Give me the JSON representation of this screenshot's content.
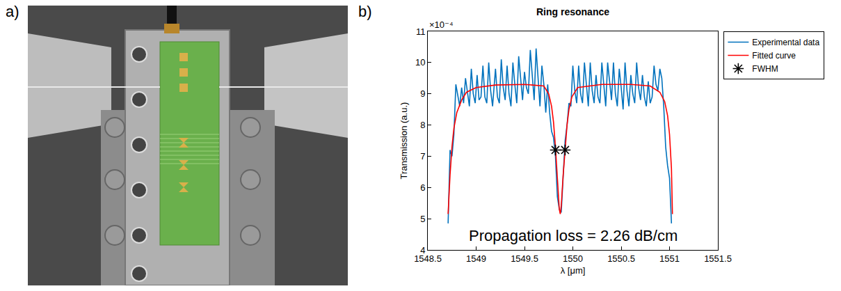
{
  "panel_labels": [
    "a)",
    "b)"
  ],
  "chart_data": {
    "type": "line",
    "title": "Ring resonance",
    "x_label": "λ [μm]",
    "y_label": "Transmission (a.u.)",
    "y_multiplier_label": "×10⁻⁴",
    "annotations": [
      "Propagation loss = 2.26 dB/cm"
    ],
    "xlim": [
      1548.5,
      1551.5
    ],
    "xticks": [
      1548.5,
      1549,
      1549.5,
      1550,
      1550.5,
      1551,
      1551.5
    ],
    "ylim": [
      4,
      11
    ],
    "yticks": [
      4,
      5,
      6,
      7,
      8,
      9,
      10,
      11
    ],
    "grid": false,
    "legend": "right",
    "series": [
      {
        "name": "Experimental data",
        "color": "#0072BD",
        "type": "line",
        "line_style": "solid",
        "x": [
          1548.71,
          1548.73,
          1548.75,
          1548.77,
          1548.79,
          1548.81,
          1548.83,
          1548.85,
          1548.87,
          1548.89,
          1548.91,
          1548.93,
          1548.95,
          1548.97,
          1548.99,
          1549.01,
          1549.03,
          1549.05,
          1549.07,
          1549.09,
          1549.11,
          1549.13,
          1549.15,
          1549.17,
          1549.2,
          1549.22,
          1549.24,
          1549.26,
          1549.28,
          1549.3,
          1549.32,
          1549.34,
          1549.36,
          1549.38,
          1549.4,
          1549.42,
          1549.44,
          1549.46,
          1549.48,
          1549.5,
          1549.52,
          1549.54,
          1549.56,
          1549.58,
          1549.6,
          1549.62,
          1549.64,
          1549.66,
          1549.68,
          1549.7,
          1549.72,
          1549.74,
          1549.76,
          1549.78,
          1549.8,
          1549.82,
          1549.84,
          1549.86,
          1549.88,
          1549.9,
          1549.92,
          1549.94,
          1549.96,
          1549.98,
          1550,
          1550.02,
          1550.04,
          1550.06,
          1550.08,
          1550.1,
          1550.12,
          1550.14,
          1550.16,
          1550.18,
          1550.2,
          1550.22,
          1550.24,
          1550.26,
          1550.28,
          1550.3,
          1550.32,
          1550.34,
          1550.36,
          1550.38,
          1550.4,
          1550.42,
          1550.44,
          1550.46,
          1550.48,
          1550.5,
          1550.52,
          1550.54,
          1550.56,
          1550.58,
          1550.6,
          1550.62,
          1550.64,
          1550.66,
          1550.68,
          1550.7,
          1550.72,
          1550.74,
          1550.76,
          1550.78,
          1550.8,
          1550.82,
          1550.84,
          1550.86,
          1550.88,
          1550.9,
          1550.92,
          1550.94,
          1550.96,
          1550.98,
          1551,
          1551.02
        ],
        "values": [
          4.85,
          7.2,
          7.0,
          7.7,
          9.3,
          8.9,
          8.6,
          9.2,
          8.7,
          9.5,
          9.0,
          8.6,
          9.8,
          9.0,
          8.7,
          9.6,
          8.8,
          8.9,
          9.9,
          8.9,
          8.7,
          10.0,
          9.1,
          8.6,
          9.8,
          8.9,
          8.7,
          10.1,
          9.2,
          8.8,
          9.9,
          9.0,
          8.6,
          10.0,
          9.3,
          8.7,
          10.2,
          9.4,
          8.8,
          9.7,
          9.2,
          9.0,
          10.4,
          9.6,
          8.8,
          10.45,
          9.5,
          8.6,
          9.9,
          9.3,
          8.4,
          9.3,
          8.4,
          7.8,
          7.6,
          7.0,
          5.7,
          5.3,
          5.2,
          6.4,
          7.5,
          8.0,
          8.7,
          8.6,
          9.9,
          9.1,
          8.7,
          9.9,
          9.0,
          8.7,
          10.0,
          9.3,
          8.6,
          10.0,
          9.1,
          8.7,
          9.6,
          8.9,
          8.7,
          10.0,
          9.2,
          8.6,
          10.0,
          9.4,
          8.8,
          10.0,
          9.0,
          8.6,
          9.8,
          9.2,
          8.5,
          10.0,
          9.1,
          8.6,
          9.6,
          9.0,
          8.7,
          10.0,
          9.2,
          8.8,
          9.6,
          8.9,
          8.6,
          9.4,
          8.7,
          8.9,
          9.9,
          9.3,
          9.1,
          9.8,
          9.5,
          8.6,
          7.3,
          6.7,
          6.3,
          4.85
        ]
      },
      {
        "name": "Fitted curve",
        "color": "#FF0000",
        "type": "line",
        "line_style": "solid",
        "x": [
          1548.71,
          1548.73,
          1548.75,
          1548.77,
          1548.8,
          1548.85,
          1548.9,
          1549.0,
          1549.2,
          1549.5,
          1549.7,
          1549.75,
          1549.78,
          1549.8,
          1549.82,
          1549.84,
          1549.86,
          1549.87,
          1549.88,
          1549.9,
          1549.92,
          1549.94,
          1549.96,
          1549.99,
          1550.05,
          1550.3,
          1550.6,
          1550.8,
          1550.9,
          1550.95,
          1550.98,
          1551.0,
          1551.02,
          1551.03
        ],
        "values": [
          5.15,
          6.4,
          7.3,
          7.9,
          8.4,
          8.8,
          9.05,
          9.2,
          9.28,
          9.3,
          9.25,
          9.0,
          8.6,
          8.1,
          7.3,
          6.3,
          5.3,
          5.15,
          5.4,
          6.4,
          7.3,
          8.0,
          8.5,
          8.9,
          9.2,
          9.3,
          9.3,
          9.25,
          9.05,
          8.75,
          8.3,
          7.7,
          6.6,
          5.15
        ]
      },
      {
        "name": "FWHM",
        "color": "#000000",
        "type": "scatter",
        "marker": "asterisk",
        "x": [
          1549.82,
          1549.92
        ],
        "values": [
          7.2,
          7.2
        ]
      }
    ]
  }
}
